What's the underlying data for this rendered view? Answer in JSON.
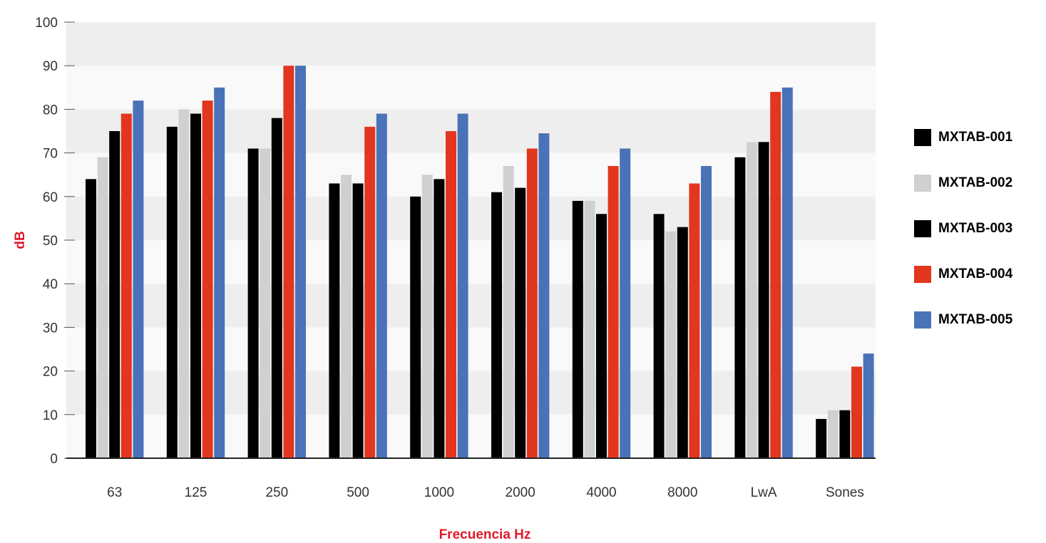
{
  "chart_data": {
    "type": "bar",
    "title": "",
    "xlabel": "Frecuencia Hz",
    "ylabel": "dB",
    "ylim": [
      0,
      100
    ],
    "yticks": [
      0,
      10,
      20,
      30,
      40,
      50,
      60,
      70,
      80,
      90,
      100
    ],
    "grid": "alternating horizontal bands",
    "legend_position": "right",
    "label_color": "#e0192a",
    "categories": [
      "63",
      "125",
      "250",
      "500",
      "1000",
      "2000",
      "4000",
      "8000",
      "LwA",
      "Sones"
    ],
    "series": [
      {
        "name": "MXTAB-001",
        "color": "#000000",
        "values": [
          64,
          76,
          71,
          63,
          60,
          61,
          59,
          56,
          69,
          9
        ]
      },
      {
        "name": "MXTAB-002",
        "color": "#d0d0d0",
        "values": [
          69,
          80,
          71,
          65,
          65,
          67,
          59,
          52,
          72.5,
          11
        ]
      },
      {
        "name": "MXTAB-003",
        "color": "#000000",
        "values": [
          75,
          79,
          78,
          63,
          64,
          62,
          56,
          53,
          72.5,
          11
        ]
      },
      {
        "name": "MXTAB-004",
        "color": "#e3361e",
        "values": [
          79,
          82,
          90,
          76,
          75,
          71,
          67,
          63,
          84,
          21
        ]
      },
      {
        "name": "MXTAB-005",
        "color": "#4a72b8",
        "values": [
          82,
          85,
          90,
          79,
          79,
          74.5,
          71,
          67,
          85,
          24
        ]
      }
    ]
  }
}
